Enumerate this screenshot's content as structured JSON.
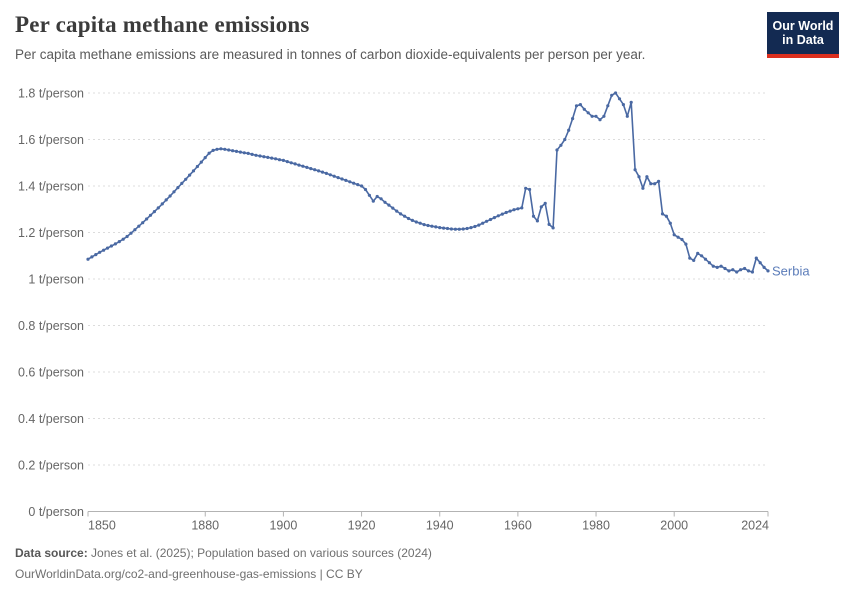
{
  "header": {
    "title": "Per capita methane emissions",
    "subtitle": "Per capita methane emissions are measured in tonnes of carbon dioxide-equivalents per person per year.",
    "logo": {
      "line1": "Our World",
      "line2": "in Data"
    }
  },
  "footer": {
    "source_label": "Data source:",
    "source_text": "Jones et al. (2025); Population based on various sources (2024)",
    "citation": "OurWorldinData.org/co2-and-greenhouse-gas-emissions | CC BY"
  },
  "chart_data": {
    "type": "line",
    "title": "Per capita methane emissions",
    "entity": "Serbia",
    "unit": "t/person",
    "line_color": "#4a69a3",
    "label_color": "#5b7cb9",
    "grid": "horizontal-dashed",
    "legend_position": "end-of-line-label",
    "xlim": [
      1850,
      2024
    ],
    "ylim": [
      0,
      1.8
    ],
    "x_ticks": [
      1850,
      1880,
      1900,
      1920,
      1940,
      1960,
      1980,
      2000,
      2024
    ],
    "y_ticks": [
      {
        "value": 0,
        "label": "0 t/person"
      },
      {
        "value": 0.2,
        "label": "0.2 t/person"
      },
      {
        "value": 0.4,
        "label": "0.4 t/person"
      },
      {
        "value": 0.6,
        "label": "0.6 t/person"
      },
      {
        "value": 0.8,
        "label": "0.8 t/person"
      },
      {
        "value": 1,
        "label": "1 t/person"
      },
      {
        "value": 1.2,
        "label": "1.2 t/person"
      },
      {
        "value": 1.4,
        "label": "1.4 t/person"
      },
      {
        "value": 1.6,
        "label": "1.6 t/person"
      },
      {
        "value": 1.8,
        "label": "1.8 t/person"
      }
    ],
    "x_start": 1850,
    "values": [
      1.085,
      1.095,
      1.105,
      1.115,
      1.124,
      1.133,
      1.142,
      1.151,
      1.161,
      1.171,
      1.183,
      1.197,
      1.212,
      1.227,
      1.242,
      1.258,
      1.274,
      1.29,
      1.306,
      1.323,
      1.34,
      1.357,
      1.375,
      1.393,
      1.411,
      1.429,
      1.447,
      1.465,
      1.484,
      1.503,
      1.522,
      1.541,
      1.553,
      1.558,
      1.56,
      1.558,
      1.555,
      1.552,
      1.549,
      1.546,
      1.543,
      1.54,
      1.536,
      1.532,
      1.529,
      1.526,
      1.523,
      1.52,
      1.517,
      1.513,
      1.51,
      1.505,
      1.5,
      1.495,
      1.49,
      1.485,
      1.48,
      1.475,
      1.47,
      1.465,
      1.46,
      1.454,
      1.448,
      1.442,
      1.436,
      1.43,
      1.424,
      1.418,
      1.412,
      1.406,
      1.4,
      1.385,
      1.36,
      1.335,
      1.355,
      1.345,
      1.33,
      1.318,
      1.305,
      1.292,
      1.28,
      1.27,
      1.26,
      1.252,
      1.245,
      1.24,
      1.234,
      1.23,
      1.227,
      1.224,
      1.221,
      1.219,
      1.217,
      1.215,
      1.214,
      1.214,
      1.215,
      1.217,
      1.221,
      1.226,
      1.232,
      1.24,
      1.248,
      1.256,
      1.264,
      1.272,
      1.279,
      1.286,
      1.292,
      1.298,
      1.302,
      1.306,
      1.39,
      1.385,
      1.27,
      1.25,
      1.31,
      1.325,
      1.235,
      1.22,
      1.555,
      1.575,
      1.6,
      1.64,
      1.69,
      1.745,
      1.75,
      1.73,
      1.715,
      1.7,
      1.7,
      1.685,
      1.7,
      1.745,
      1.79,
      1.8,
      1.775,
      1.75,
      1.7,
      1.76,
      1.47,
      1.44,
      1.39,
      1.44,
      1.41,
      1.41,
      1.42,
      1.28,
      1.27,
      1.24,
      1.19,
      1.18,
      1.17,
      1.15,
      1.09,
      1.08,
      1.11,
      1.1,
      1.085,
      1.07,
      1.055,
      1.05,
      1.055,
      1.045,
      1.035,
      1.04,
      1.03,
      1.04,
      1.045,
      1.035,
      1.03,
      1.09,
      1.07,
      1.05,
      1.035
    ]
  }
}
